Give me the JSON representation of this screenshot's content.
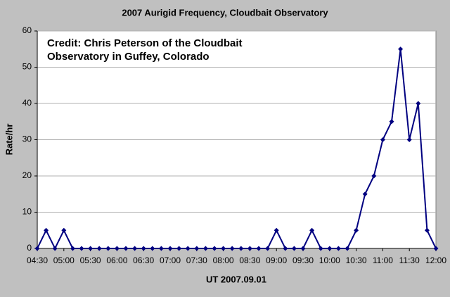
{
  "chart_data": {
    "type": "line",
    "title": "2007 Aurigid Frequency, Cloudbait Observatory",
    "annotation": [
      "Credit: Chris Peterson of the Cloudbait",
      "Observatory in Guffey, Colorado"
    ],
    "x_label": "UT 2007.09.01",
    "y_label": "Rate/hr",
    "categories": [
      "04:30",
      null,
      null,
      "05:00",
      null,
      null,
      "05:30",
      null,
      null,
      "06:00",
      null,
      null,
      "06:30",
      null,
      null,
      "07:00",
      null,
      null,
      "07:30",
      null,
      null,
      "08:00",
      null,
      null,
      "08:30",
      null,
      null,
      "09:00",
      null,
      null,
      "09:30",
      null,
      null,
      "10:00",
      null,
      null,
      "10:30",
      null,
      null,
      "11:00",
      null,
      null,
      "11:30",
      null,
      null,
      "12:00"
    ],
    "series": [
      {
        "color": "#000080",
        "values": [
          0,
          5,
          0,
          5,
          0,
          0,
          0,
          0,
          0,
          0,
          0,
          0,
          0,
          0,
          0,
          0,
          0,
          0,
          0,
          0,
          0,
          0,
          0,
          0,
          0,
          0,
          0,
          5,
          0,
          0,
          0,
          5,
          0,
          0,
          0,
          0,
          5,
          15,
          20,
          30,
          35,
          55,
          30,
          40,
          5,
          0
        ]
      }
    ],
    "ylim": [
      0,
      60
    ],
    "yticks": [
      0,
      10,
      20,
      30,
      40,
      50,
      60
    ],
    "grid": true
  }
}
